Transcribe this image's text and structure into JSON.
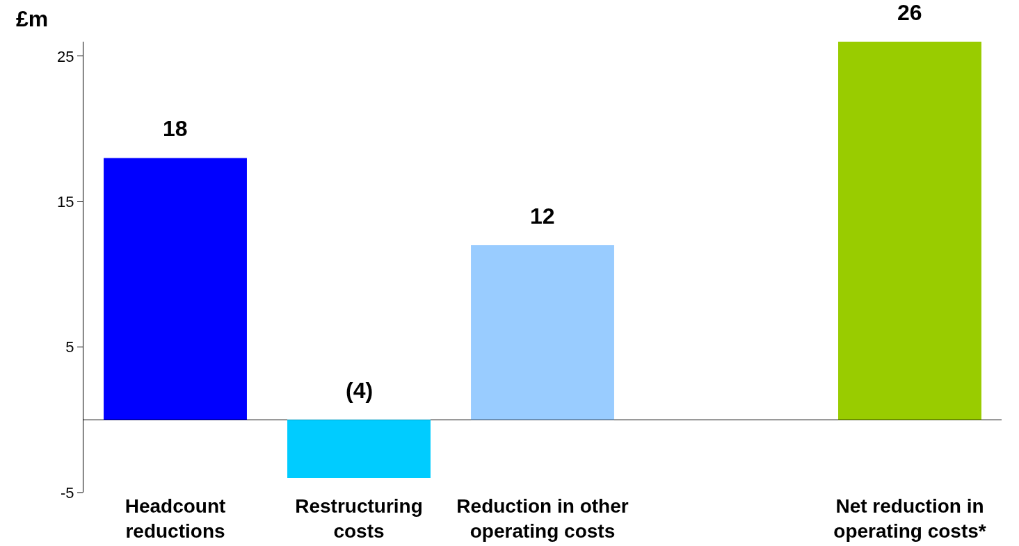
{
  "chart_data": {
    "type": "bar",
    "ylabel": "£m",
    "categories": [
      "Headcount reductions",
      "Restructuring costs",
      "Reduction in other operating costs",
      null,
      "Net reduction in operating costs*"
    ],
    "values": [
      18,
      -4,
      12,
      null,
      26
    ],
    "colors": [
      "#0000ff",
      "#00ccff",
      "#99ccff",
      "#999999",
      "#99cc00"
    ],
    "value_labels": [
      "18",
      "(4)",
      "12",
      null,
      "26"
    ],
    "ylim": [
      -5,
      26
    ],
    "yticks": [
      25,
      15,
      5,
      -5
    ],
    "grid": false
  }
}
